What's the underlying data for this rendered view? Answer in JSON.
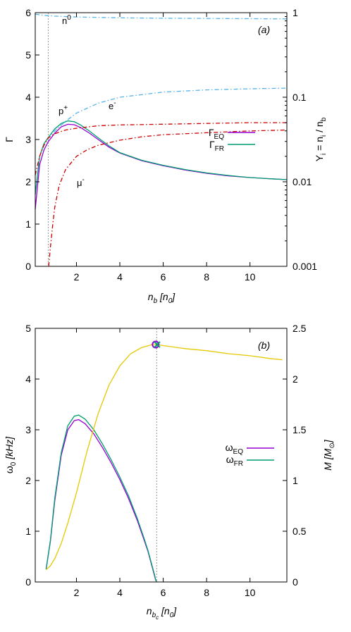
{
  "chart_data": [
    {
      "panel_label": "(a)",
      "type": "line",
      "xlabel": "n_b [n_0]",
      "ylabel": "Γ",
      "y2label": "Y_i = n_i / n_b",
      "xlim": [
        0.1,
        11.7
      ],
      "ylim": [
        0,
        6
      ],
      "y2lim": [
        0.001,
        1
      ],
      "y2scale": "log",
      "xticks": [
        "2",
        "4",
        "6",
        "8",
        "10"
      ],
      "yticks": [
        "0",
        "1",
        "2",
        "3",
        "4",
        "5",
        "6"
      ],
      "y2ticks": [
        "0.001",
        "0.01",
        "0.1",
        "1"
      ],
      "vline_x": 0.7,
      "legend_position": "right-middle",
      "series": [
        {
          "name": "Γ_EQ",
          "axis": "left",
          "color": "#9400d3",
          "x": [
            0.1,
            0.3,
            0.5,
            0.7,
            1.0,
            1.3,
            1.6,
            1.9,
            2.2,
            2.6,
            3.0,
            3.5,
            4.0,
            5.0,
            6.0,
            7.0,
            8.0,
            9.0,
            10.0,
            11.0,
            11.7
          ],
          "y": [
            1.35,
            2.4,
            2.75,
            2.95,
            3.15,
            3.3,
            3.36,
            3.35,
            3.28,
            3.15,
            3.0,
            2.82,
            2.68,
            2.5,
            2.38,
            2.28,
            2.2,
            2.14,
            2.1,
            2.07,
            2.05
          ]
        },
        {
          "name": "Γ_FR",
          "axis": "left",
          "color": "#009e73",
          "x": [
            0.1,
            0.3,
            0.5,
            0.7,
            1.0,
            1.3,
            1.6,
            1.9,
            2.2,
            2.6,
            3.0,
            3.5,
            4.0,
            5.0,
            6.0,
            7.0,
            8.0,
            9.0,
            10.0,
            11.0,
            11.7
          ],
          "y": [
            1.7,
            2.6,
            2.9,
            3.05,
            3.25,
            3.38,
            3.44,
            3.42,
            3.34,
            3.2,
            3.04,
            2.85,
            2.69,
            2.51,
            2.39,
            2.29,
            2.21,
            2.15,
            2.1,
            2.07,
            2.05
          ]
        },
        {
          "name": "n⁰",
          "axis": "right",
          "color": "#56b4e9",
          "dash": "dashdot",
          "x": [
            0.1,
            0.5,
            1.0,
            2.0,
            4.0,
            6.0,
            8.0,
            10.0,
            11.7
          ],
          "y": [
            0.96,
            0.93,
            0.91,
            0.89,
            0.87,
            0.86,
            0.855,
            0.85,
            0.845
          ]
        },
        {
          "name": "p⁺",
          "axis": "right",
          "color": "#56b4e9",
          "dash": "dashdot",
          "x": [
            0.1,
            0.3,
            0.5,
            0.7,
            1.0,
            1.5,
            2.0,
            3.0,
            4.0,
            6.0,
            8.0,
            10.0,
            11.7
          ],
          "y": [
            0.012,
            0.02,
            0.027,
            0.033,
            0.04,
            0.052,
            0.065,
            0.085,
            0.1,
            0.115,
            0.122,
            0.126,
            0.128
          ]
        },
        {
          "name": "e⁻",
          "axis": "right",
          "color": "#cc0000",
          "dash": "dashdot",
          "x": [
            0.1,
            0.3,
            0.5,
            0.7,
            1.0,
            1.5,
            2.0,
            3.0,
            4.0,
            6.0,
            8.0,
            10.0,
            11.7
          ],
          "y": [
            0.012,
            0.02,
            0.027,
            0.033,
            0.037,
            0.041,
            0.043,
            0.046,
            0.047,
            0.048,
            0.049,
            0.05,
            0.05
          ]
        },
        {
          "name": "μ⁻",
          "axis": "right",
          "color": "#cc0000",
          "dash": "dashdot",
          "x": [
            0.72,
            0.78,
            0.9,
            1.0,
            1.2,
            1.5,
            2.0,
            2.5,
            3.0,
            4.0,
            5.0,
            6.0,
            8.0,
            10.0,
            11.7
          ],
          "y": [
            0.001,
            0.0015,
            0.003,
            0.005,
            0.009,
            0.014,
            0.02,
            0.024,
            0.027,
            0.031,
            0.034,
            0.036,
            0.038,
            0.04,
            0.041
          ]
        }
      ],
      "annotations": [
        {
          "text": "n⁰",
          "x": 0.95,
          "y2": 0.88
        },
        {
          "text": "p⁺",
          "x": 1.0,
          "y2": 0.062
        },
        {
          "text": "e⁻",
          "x": 3.5,
          "y2": 0.062
        },
        {
          "text": "μ⁻",
          "x": 1.5,
          "y2": 0.0095
        }
      ]
    },
    {
      "panel_label": "(b)",
      "type": "line",
      "xlabel": "n_bc [n_0]",
      "ylabel": "ω_0 [kHz]",
      "y2label": "M [M_⊙]",
      "xlim": [
        0.1,
        11.7
      ],
      "ylim": [
        0,
        5
      ],
      "y2lim": [
        0,
        2.5
      ],
      "xticks": [
        "2",
        "4",
        "6",
        "8",
        "10"
      ],
      "yticks": [
        "0",
        "1",
        "2",
        "3",
        "4",
        "5"
      ],
      "y2ticks": [
        "0",
        "0.5",
        "1",
        "1.5",
        "2",
        "2.5"
      ],
      "vline_x": 5.7,
      "marker_points": [
        {
          "x": 5.65,
          "y2": 2.34
        },
        {
          "x": 5.72,
          "y2": 2.34
        }
      ],
      "legend_position": "right-middle",
      "series": [
        {
          "name": "ω_EQ",
          "axis": "left",
          "color": "#9400d3",
          "x": [
            0.6,
            0.8,
            1.0,
            1.3,
            1.6,
            1.9,
            2.1,
            2.4,
            2.8,
            3.2,
            3.6,
            4.0,
            4.4,
            4.8,
            5.1,
            5.3,
            5.5,
            5.6,
            5.65,
            5.7
          ],
          "y": [
            0.25,
            0.8,
            1.6,
            2.5,
            3.0,
            3.18,
            3.2,
            3.12,
            2.92,
            2.65,
            2.35,
            2.02,
            1.65,
            1.22,
            0.85,
            0.6,
            0.28,
            0.12,
            0.04,
            0.0
          ]
        },
        {
          "name": "ω_FR",
          "axis": "left",
          "color": "#009e73",
          "x": [
            0.6,
            0.8,
            1.0,
            1.3,
            1.6,
            1.9,
            2.1,
            2.4,
            2.8,
            3.2,
            3.6,
            4.0,
            4.4,
            4.8,
            5.1,
            5.3,
            5.5,
            5.6,
            5.65,
            5.7
          ],
          "y": [
            0.25,
            0.82,
            1.65,
            2.55,
            3.08,
            3.27,
            3.29,
            3.21,
            3.0,
            2.72,
            2.41,
            2.07,
            1.7,
            1.26,
            0.88,
            0.62,
            0.3,
            0.14,
            0.05,
            0.0
          ]
        },
        {
          "name": "M",
          "axis": "right",
          "color": "#e6c800",
          "x": [
            0.6,
            0.8,
            1.0,
            1.3,
            1.6,
            2.0,
            2.5,
            3.0,
            3.5,
            4.0,
            4.5,
            5.0,
            5.5,
            5.7,
            6.0,
            7.0,
            8.0,
            9.0,
            10.0,
            11.0,
            11.5
          ],
          "y": [
            0.12,
            0.16,
            0.23,
            0.38,
            0.58,
            0.88,
            1.3,
            1.66,
            1.94,
            2.13,
            2.25,
            2.31,
            2.34,
            2.34,
            2.33,
            2.3,
            2.28,
            2.25,
            2.23,
            2.2,
            2.19
          ]
        }
      ]
    }
  ]
}
